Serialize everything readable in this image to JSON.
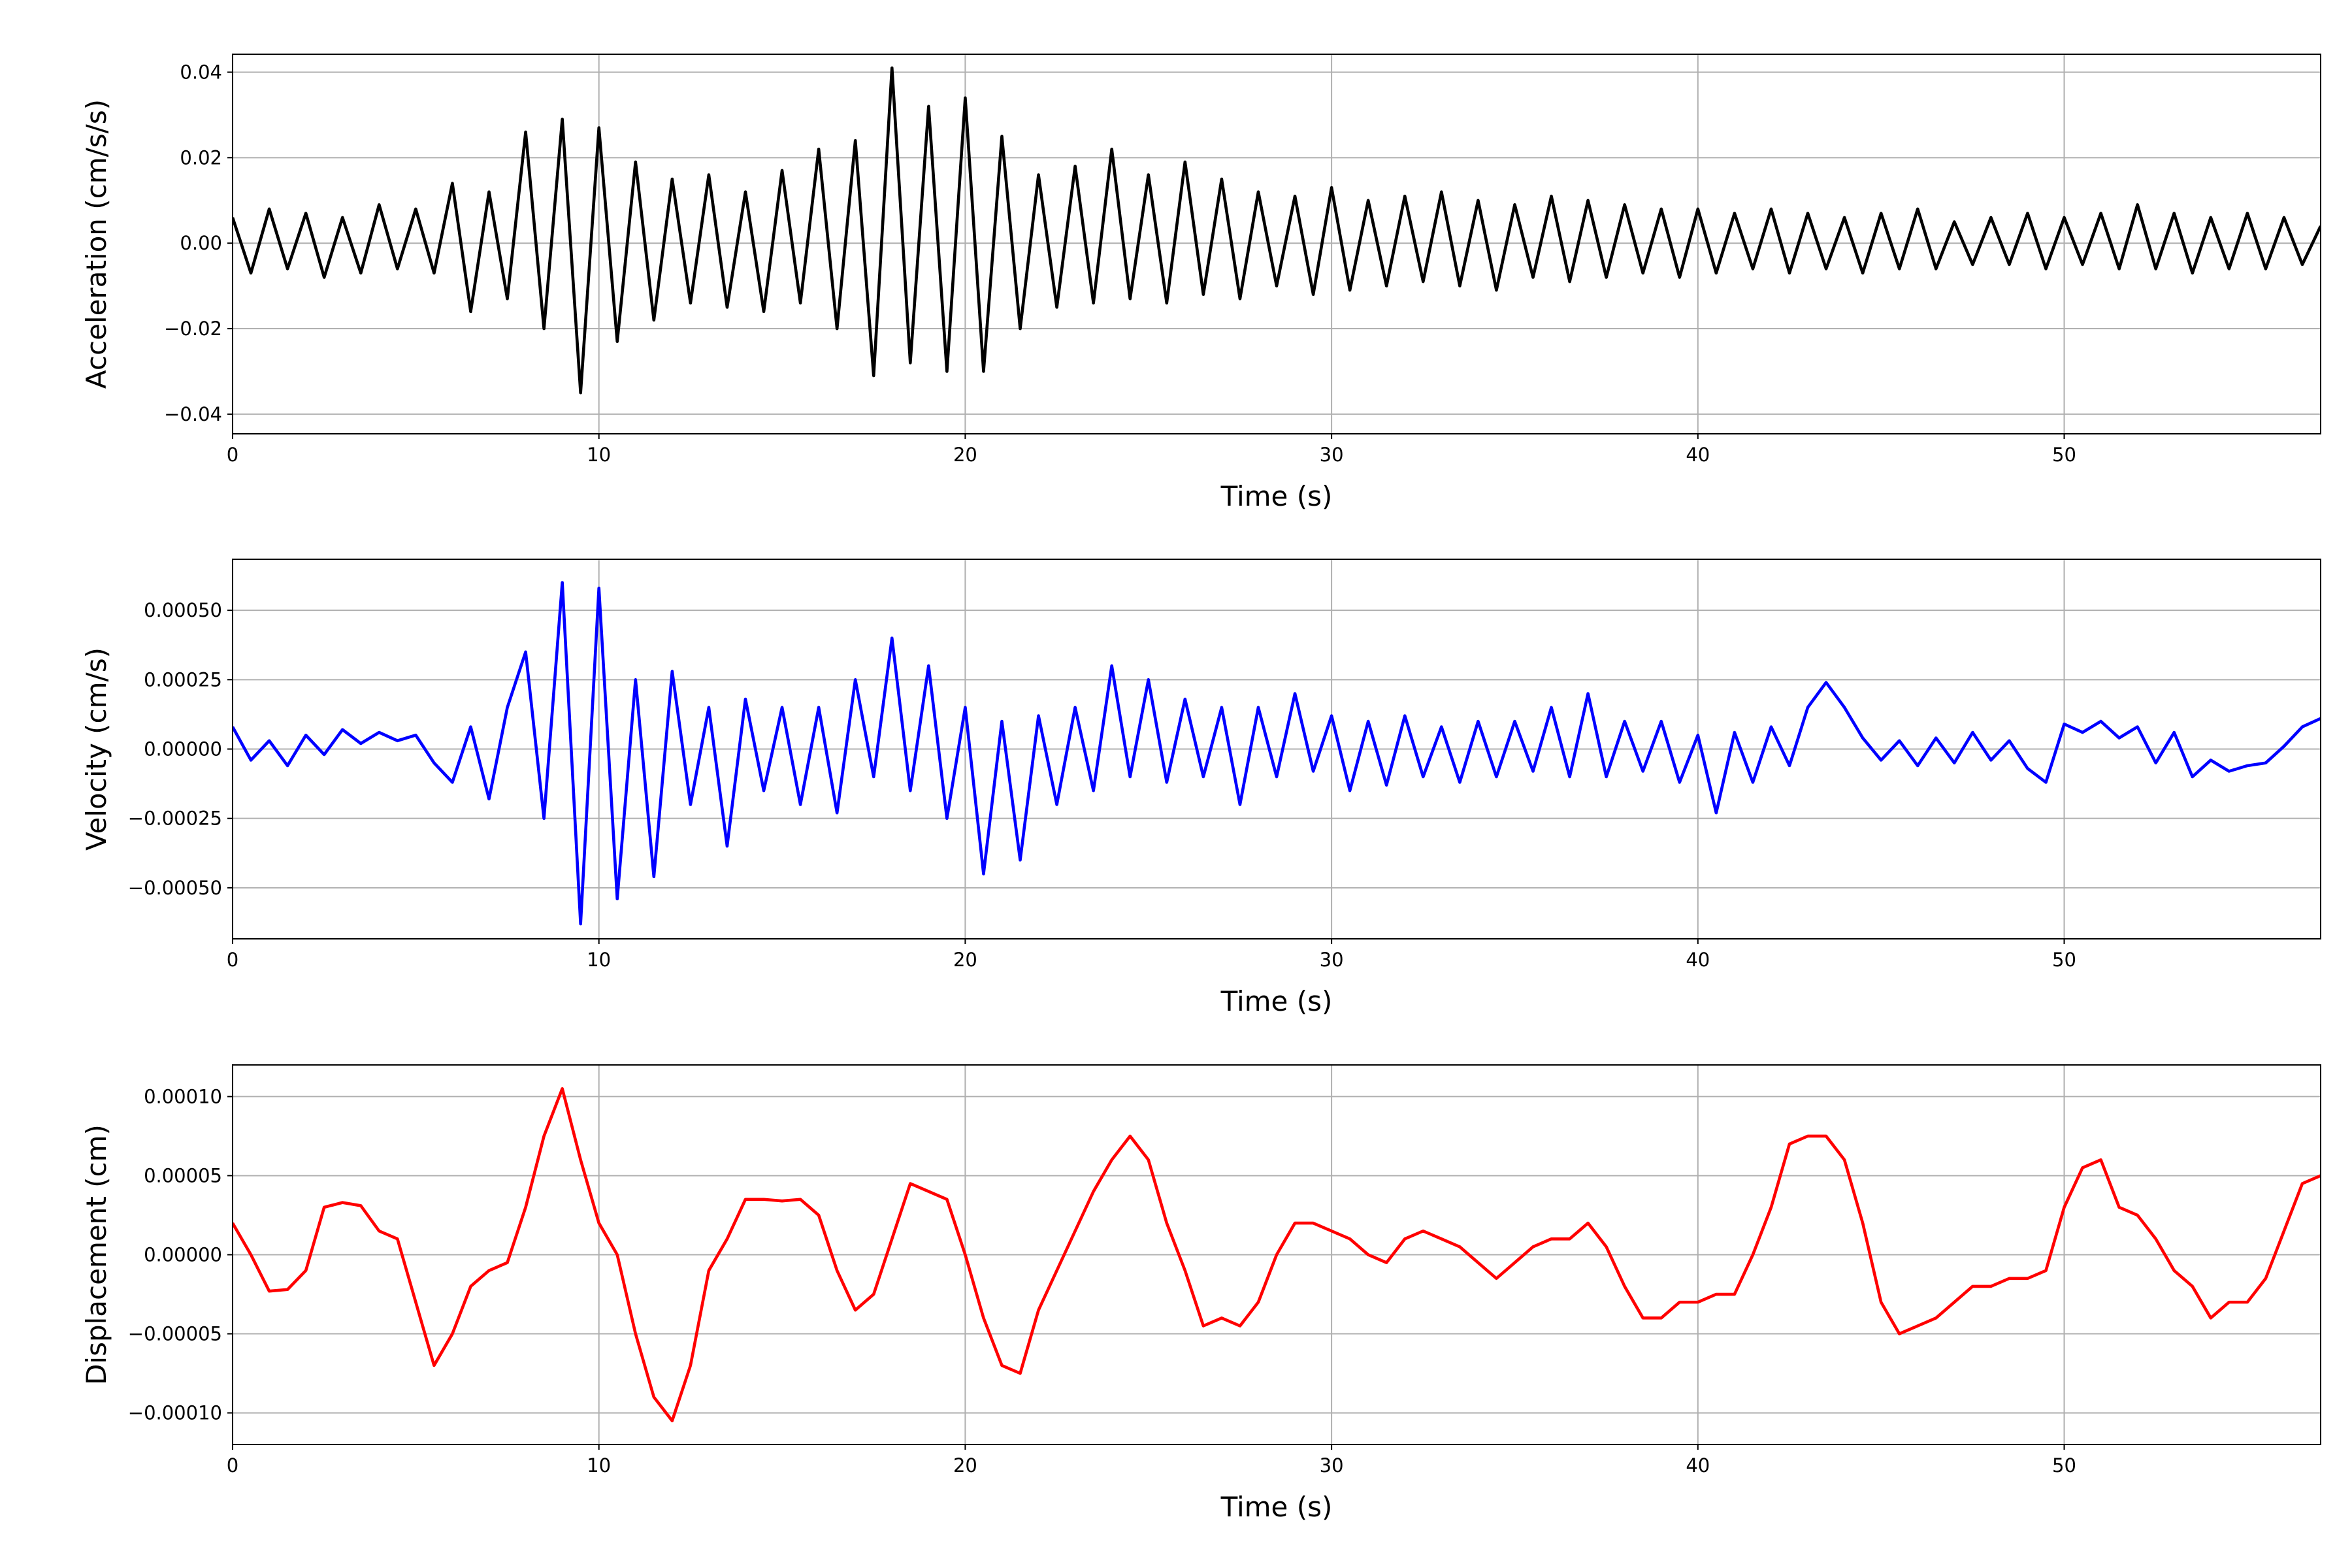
{
  "chart_data": [
    {
      "type": "line",
      "xlabel": "Time (s)",
      "ylabel": "Acceleration (cm/s/s)",
      "color": "#000000",
      "grid": true,
      "xlim": [
        0,
        57
      ],
      "xticks": [
        0,
        10,
        20,
        30,
        40,
        50
      ],
      "ylim": [
        -0.0446,
        0.0442
      ],
      "yticks": [
        {
          "value": -0.04,
          "label": "−0.04"
        },
        {
          "value": -0.02,
          "label": "−0.02"
        },
        {
          "value": 0,
          "label": "0.00"
        },
        0.02,
        0.04
      ],
      "x": [
        0,
        0.5,
        1,
        1.5,
        2,
        2.5,
        3,
        3.5,
        4,
        4.5,
        5,
        5.5,
        6,
        6.5,
        7,
        7.5,
        8,
        8.5,
        9,
        9.5,
        10,
        10.5,
        11,
        11.5,
        12,
        12.5,
        13,
        13.5,
        14,
        14.5,
        15,
        15.5,
        16,
        16.5,
        17,
        17.5,
        18,
        18.5,
        19,
        19.5,
        20,
        20.5,
        21,
        21.5,
        22,
        22.5,
        23,
        23.5,
        24,
        24.5,
        25,
        25.5,
        26,
        26.5,
        27,
        27.5,
        28,
        28.5,
        29,
        29.5,
        30,
        30.5,
        31,
        31.5,
        32,
        32.5,
        33,
        33.5,
        34,
        34.5,
        35,
        35.5,
        36,
        36.5,
        37,
        37.5,
        38,
        38.5,
        39,
        39.5,
        40,
        40.5,
        41,
        41.5,
        42,
        42.5,
        43,
        43.5,
        44,
        44.5,
        45,
        45.5,
        46,
        46.5,
        47,
        47.5,
        48,
        48.5,
        49,
        49.5,
        50,
        50.5,
        51,
        51.5,
        52,
        52.5,
        53,
        53.5,
        54,
        54.5,
        55,
        55.5,
        56,
        56.5,
        57
      ],
      "values": [
        0.006,
        -0.007,
        0.008,
        -0.006,
        0.007,
        -0.008,
        0.006,
        -0.007,
        0.009,
        -0.006,
        0.008,
        -0.007,
        0.014,
        -0.016,
        0.012,
        -0.013,
        0.026,
        -0.02,
        0.029,
        -0.035,
        0.027,
        -0.023,
        0.019,
        -0.018,
        0.015,
        -0.014,
        0.016,
        -0.015,
        0.012,
        -0.016,
        0.017,
        -0.014,
        0.022,
        -0.02,
        0.024,
        -0.031,
        0.041,
        -0.028,
        0.032,
        -0.03,
        0.034,
        -0.03,
        0.025,
        -0.02,
        0.016,
        -0.015,
        0.018,
        -0.014,
        0.022,
        -0.013,
        0.016,
        -0.014,
        0.019,
        -0.012,
        0.015,
        -0.013,
        0.012,
        -0.01,
        0.011,
        -0.012,
        0.013,
        -0.011,
        0.01,
        -0.01,
        0.011,
        -0.009,
        0.012,
        -0.01,
        0.01,
        -0.011,
        0.009,
        -0.008,
        0.011,
        -0.009,
        0.01,
        -0.008,
        0.009,
        -0.007,
        0.008,
        -0.008,
        0.008,
        -0.007,
        0.007,
        -0.006,
        0.008,
        -0.007,
        0.007,
        -0.006,
        0.006,
        -0.007,
        0.007,
        -0.006,
        0.008,
        -0.006,
        0.005,
        -0.005,
        0.006,
        -0.005,
        0.007,
        -0.006,
        0.006,
        -0.005,
        0.007,
        -0.006,
        0.009,
        -0.006,
        0.007,
        -0.007,
        0.006,
        -0.006,
        0.007,
        -0.006,
        0.006,
        -0.005,
        0.004
      ]
    },
    {
      "type": "line",
      "xlabel": "Time (s)",
      "ylabel": "Velocity (cm/s)",
      "color": "#0000ff",
      "grid": true,
      "xlim": [
        0,
        57
      ],
      "xticks": [
        0,
        10,
        20,
        30,
        40,
        50
      ],
      "ylim": [
        -0.000684,
        0.000684
      ],
      "yticks": [
        {
          "value": -0.0005,
          "label": "−0.00050"
        },
        {
          "value": -0.00025,
          "label": "−0.00025"
        },
        {
          "value": 0,
          "label": "0.00000"
        },
        {
          "value": 0.00025,
          "label": "0.00025"
        },
        {
          "value": 0.0005,
          "label": "0.00050"
        }
      ],
      "x": [
        0,
        0.5,
        1,
        1.5,
        2,
        2.5,
        3,
        3.5,
        4,
        4.5,
        5,
        5.5,
        6,
        6.5,
        7,
        7.5,
        8,
        8.5,
        9,
        9.5,
        10,
        10.5,
        11,
        11.5,
        12,
        12.5,
        13,
        13.5,
        14,
        14.5,
        15,
        15.5,
        16,
        16.5,
        17,
        17.5,
        18,
        18.5,
        19,
        19.5,
        20,
        20.5,
        21,
        21.5,
        22,
        22.5,
        23,
        23.5,
        24,
        24.5,
        25,
        25.5,
        26,
        26.5,
        27,
        27.5,
        28,
        28.5,
        29,
        29.5,
        30,
        30.5,
        31,
        31.5,
        32,
        32.5,
        33,
        33.5,
        34,
        34.5,
        35,
        35.5,
        36,
        36.5,
        37,
        37.5,
        38,
        38.5,
        39,
        39.5,
        40,
        40.5,
        41,
        41.5,
        42,
        42.5,
        43,
        43.5,
        44,
        44.5,
        45,
        45.5,
        46,
        46.5,
        47,
        47.5,
        48,
        48.5,
        49,
        49.5,
        50,
        50.5,
        51,
        51.5,
        52,
        52.5,
        53,
        53.5,
        54,
        54.5,
        55,
        55.5,
        56,
        56.5,
        57
      ],
      "values": [
        8e-05,
        -4e-05,
        3e-05,
        -6e-05,
        5e-05,
        -2e-05,
        7e-05,
        2e-05,
        6e-05,
        3e-05,
        5e-05,
        -5e-05,
        -0.00012,
        8e-05,
        -0.00018,
        0.00015,
        0.00035,
        -0.00025,
        0.0006,
        -0.00063,
        0.00058,
        -0.00054,
        0.00025,
        -0.00046,
        0.00028,
        -0.0002,
        0.00015,
        -0.00035,
        0.00018,
        -0.00015,
        0.00015,
        -0.0002,
        0.00015,
        -0.00023,
        0.00025,
        -0.0001,
        0.0004,
        -0.00015,
        0.0003,
        -0.00025,
        0.00015,
        -0.00045,
        0.0001,
        -0.0004,
        0.00012,
        -0.0002,
        0.00015,
        -0.00015,
        0.0003,
        -0.0001,
        0.00025,
        -0.00012,
        0.00018,
        -0.0001,
        0.00015,
        -0.0002,
        0.00015,
        -0.0001,
        0.0002,
        -8e-05,
        0.00012,
        -0.00015,
        0.0001,
        -0.00013,
        0.00012,
        -0.0001,
        8e-05,
        -0.00012,
        0.0001,
        -0.0001,
        0.0001,
        -8e-05,
        0.00015,
        -0.0001,
        0.0002,
        -0.0001,
        0.0001,
        -8e-05,
        0.0001,
        -0.00012,
        5e-05,
        -0.00023,
        6e-05,
        -0.00012,
        8e-05,
        -6e-05,
        0.00015,
        0.00024,
        0.00015,
        4e-05,
        -4e-05,
        3e-05,
        -6e-05,
        4e-05,
        -5e-05,
        6e-05,
        -4e-05,
        3e-05,
        -7e-05,
        -0.00012,
        9e-05,
        6e-05,
        0.0001,
        4e-05,
        8e-05,
        -5e-05,
        6e-05,
        -0.0001,
        -4e-05,
        -8e-05,
        -6e-05,
        -5e-05,
        1e-05,
        8e-05,
        0.00011
      ]
    },
    {
      "type": "line",
      "xlabel": "Time (s)",
      "ylabel": "Displacement (cm)",
      "color": "#ff0000",
      "grid": true,
      "xlim": [
        0,
        57
      ],
      "xticks": [
        0,
        10,
        20,
        30,
        40,
        50
      ],
      "ylim": [
        -0.00012,
        0.00012
      ],
      "yticks": [
        {
          "value": -0.0001,
          "label": "−0.00010"
        },
        {
          "value": -5e-05,
          "label": "−0.00005"
        },
        {
          "value": 0,
          "label": "0.00000"
        },
        {
          "value": 5e-05,
          "label": "0.00005"
        },
        {
          "value": 0.0001,
          "label": "0.00010"
        }
      ],
      "x": [
        0,
        0.5,
        1,
        1.5,
        2,
        2.5,
        3,
        3.5,
        4,
        4.5,
        5,
        5.5,
        6,
        6.5,
        7,
        7.5,
        8,
        8.5,
        9,
        9.5,
        10,
        10.5,
        11,
        11.5,
        12,
        12.5,
        13,
        13.5,
        14,
        14.5,
        15,
        15.5,
        16,
        16.5,
        17,
        17.5,
        18,
        18.5,
        19,
        19.5,
        20,
        20.5,
        21,
        21.5,
        22,
        22.5,
        23,
        23.5,
        24,
        24.5,
        25,
        25.5,
        26,
        26.5,
        27,
        27.5,
        28,
        28.5,
        29,
        29.5,
        30,
        30.5,
        31,
        31.5,
        32,
        32.5,
        33,
        33.5,
        34,
        34.5,
        35,
        35.5,
        36,
        36.5,
        37,
        37.5,
        38,
        38.5,
        39,
        39.5,
        40,
        40.5,
        41,
        41.5,
        42,
        42.5,
        43,
        43.5,
        44,
        44.5,
        45,
        45.5,
        46,
        46.5,
        47,
        47.5,
        48,
        48.5,
        49,
        49.5,
        50,
        50.5,
        51,
        51.5,
        52,
        52.5,
        53,
        53.5,
        54,
        54.5,
        55,
        55.5,
        56,
        56.5,
        57
      ],
      "values": [
        2e-05,
        0,
        -2.3e-05,
        -2.2e-05,
        -1e-05,
        3e-05,
        3.3e-05,
        3.1e-05,
        1.5e-05,
        1e-05,
        -3e-05,
        -7e-05,
        -5e-05,
        -2e-05,
        -1e-05,
        -5e-06,
        3e-05,
        7.5e-05,
        0.000105,
        6e-05,
        2e-05,
        0,
        -5e-05,
        -9e-05,
        -0.000105,
        -7e-05,
        -1e-05,
        1e-05,
        3.5e-05,
        3.5e-05,
        3.4e-05,
        3.5e-05,
        2.5e-05,
        -1e-05,
        -3.5e-05,
        -2.5e-05,
        1e-05,
        4.5e-05,
        4e-05,
        3.5e-05,
        0,
        -4e-05,
        -7e-05,
        -7.5e-05,
        -3.5e-05,
        -1e-05,
        1.5e-05,
        4e-05,
        6e-05,
        7.5e-05,
        6e-05,
        2e-05,
        -1e-05,
        -4.5e-05,
        -4e-05,
        -4.5e-05,
        -3e-05,
        0,
        2e-05,
        2e-05,
        1.5e-05,
        1e-05,
        0,
        -5e-06,
        1e-05,
        1.5e-05,
        1e-05,
        5e-06,
        -5e-06,
        -1.5e-05,
        -5e-06,
        5e-06,
        1e-05,
        1e-05,
        2e-05,
        5e-06,
        -2e-05,
        -4e-05,
        -4e-05,
        -3e-05,
        -3e-05,
        -2.5e-05,
        -2.5e-05,
        0,
        3e-05,
        7e-05,
        7.5e-05,
        7.5e-05,
        6e-05,
        2e-05,
        -3e-05,
        -5e-05,
        -4.5e-05,
        -4e-05,
        -3e-05,
        -2e-05,
        -2e-05,
        -1.5e-05,
        -1.5e-05,
        -1e-05,
        3e-05,
        5.5e-05,
        6e-05,
        3e-05,
        2.5e-05,
        1e-05,
        -1e-05,
        -2e-05,
        -4e-05,
        -3e-05,
        -3e-05,
        -1.5e-05,
        1.5e-05,
        4.5e-05,
        5e-05
      ]
    }
  ]
}
